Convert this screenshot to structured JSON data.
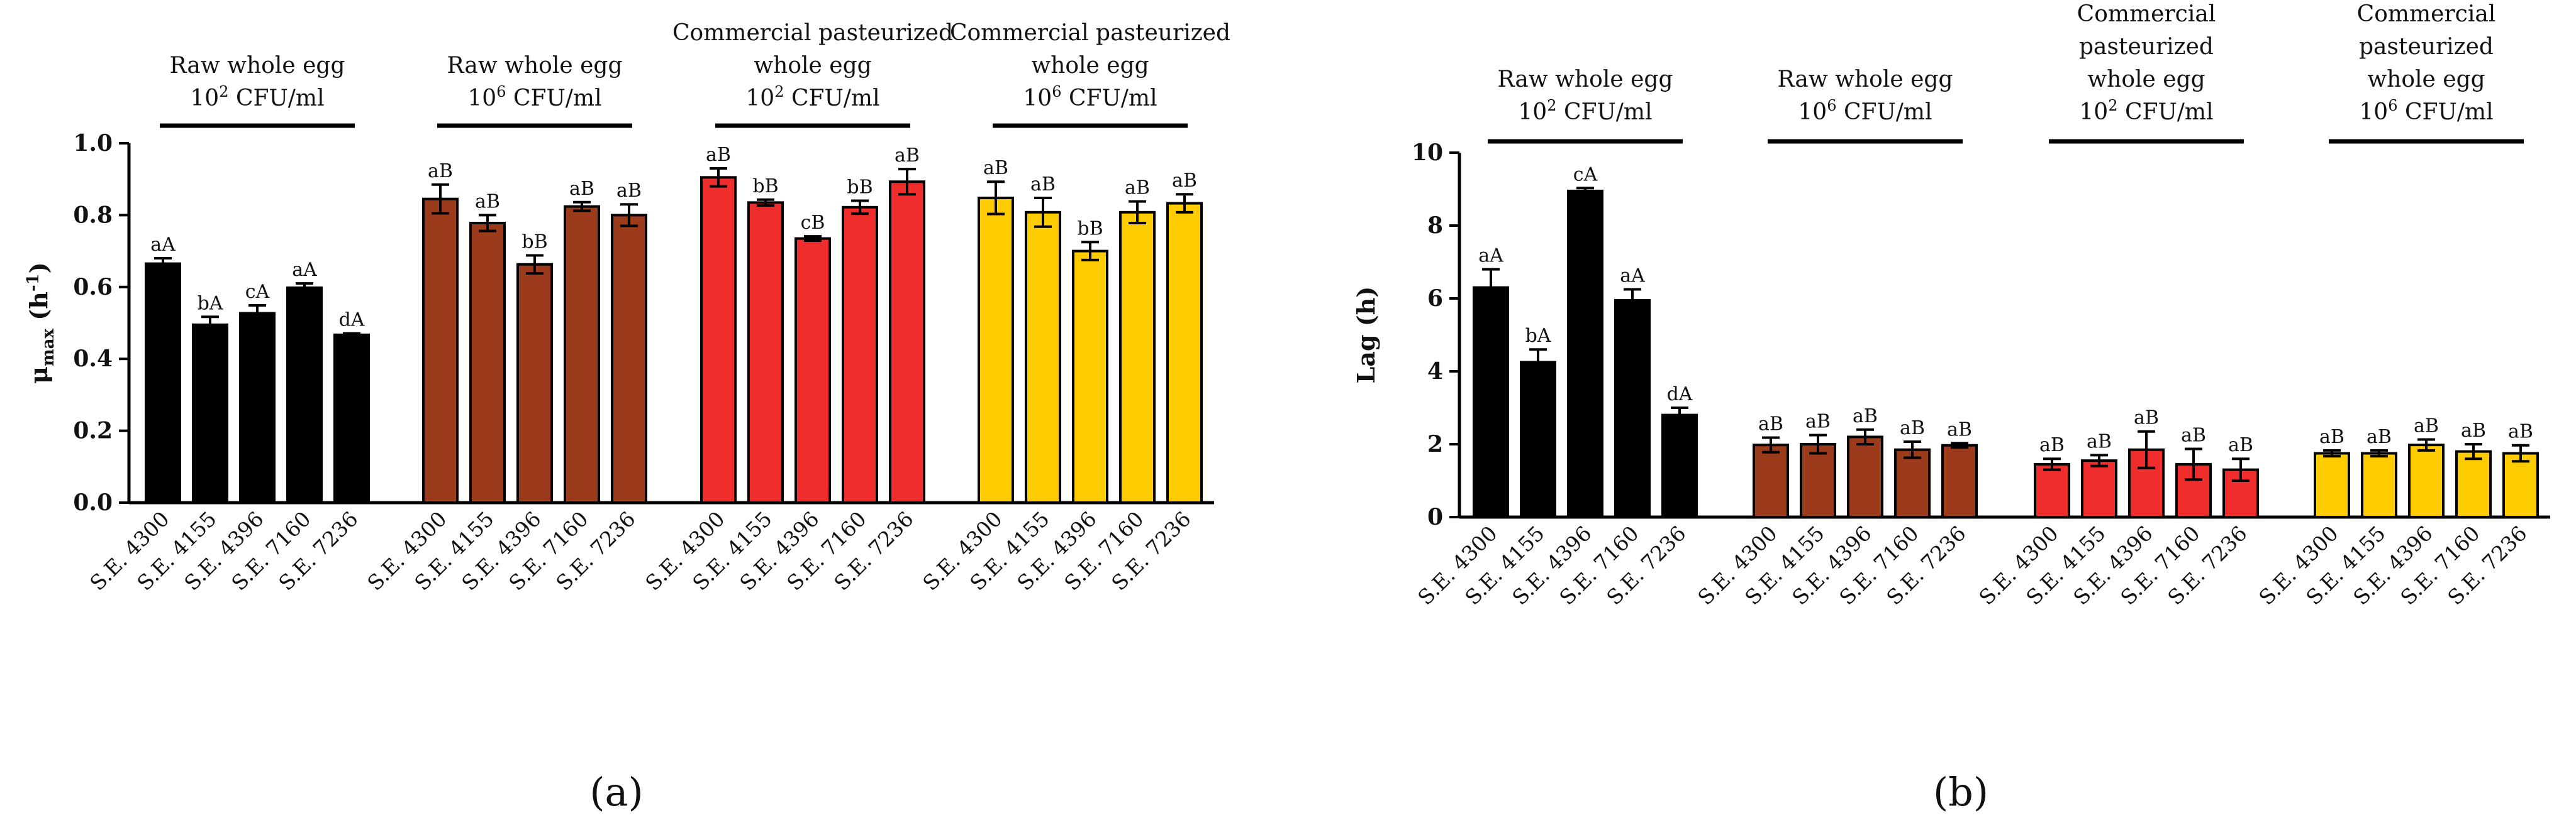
{
  "colors": {
    "Raw 10^2": "#000000",
    "Raw 10^6": "#9b3b1b",
    "Pasteurized 10^2": "#ef2d2d",
    "Pasteurized 10^6": "#ffcc00"
  },
  "chart_data": [
    {
      "type": "bar",
      "panel_label": "(a)",
      "ylabel": "μmax (h-1)",
      "ylabel_main": "μ",
      "ylabel_sub": "max",
      "ylabel_unit_open": " (h",
      "ylabel_unit_sup": "-1",
      "ylabel_unit_close": ")",
      "ylim": [
        0.0,
        1.0
      ],
      "yticks": [
        0.0,
        0.2,
        0.4,
        0.6,
        0.8,
        1.0
      ],
      "ytick_labels": [
        "0.0",
        "0.2",
        "0.4",
        "0.6",
        "0.8",
        "1.0"
      ],
      "categories": [
        "S.E. 4300",
        "S.E. 4155",
        "S.E. 4396",
        "S.E. 7160",
        "S.E. 7236"
      ],
      "groups": [
        {
          "title_lines": [
            "Raw whole egg"
          ],
          "conc_base": "10",
          "conc_exp": "2",
          "conc_unit": " CFU/ml",
          "color_key": "Raw 10^2",
          "values": [
            0.665,
            0.495,
            0.527,
            0.598,
            0.467
          ],
          "errors": [
            0.015,
            0.022,
            0.022,
            0.012,
            0.004
          ],
          "letters": [
            "aA",
            "bA",
            "cA",
            "aA",
            "dA"
          ]
        },
        {
          "title_lines": [
            "Raw whole egg"
          ],
          "conc_base": "10",
          "conc_exp": "6",
          "conc_unit": " CFU/ml",
          "color_key": "Raw 10^6",
          "values": [
            0.845,
            0.778,
            0.663,
            0.824,
            0.8
          ],
          "errors": [
            0.04,
            0.022,
            0.025,
            0.012,
            0.03
          ],
          "letters": [
            "aB",
            "aB",
            "bB",
            "aB",
            "aB"
          ]
        },
        {
          "title_lines": [
            "Commercial pasteurized",
            "whole egg"
          ],
          "conc_base": "10",
          "conc_exp": "2",
          "conc_unit": " CFU/ml",
          "color_key": "Pasteurized 10^2",
          "values": [
            0.905,
            0.835,
            0.735,
            0.822,
            0.893
          ],
          "errors": [
            0.025,
            0.008,
            0.006,
            0.018,
            0.035
          ],
          "letters": [
            "aB",
            "bB",
            "cB",
            "bB",
            "aB"
          ]
        },
        {
          "title_lines": [
            "Commercial pasteurized",
            "whole egg"
          ],
          "conc_base": "10",
          "conc_exp": "6",
          "conc_unit": " CFU/ml",
          "color_key": "Pasteurized 10^6",
          "values": [
            0.848,
            0.808,
            0.7,
            0.808,
            0.833
          ],
          "errors": [
            0.045,
            0.04,
            0.025,
            0.03,
            0.025
          ],
          "letters": [
            "aB",
            "aB",
            "bB",
            "aB",
            "aB"
          ]
        }
      ]
    },
    {
      "type": "bar",
      "panel_label": "(b)",
      "ylabel": "Lag (h)",
      "ylim": [
        0,
        10
      ],
      "yticks": [
        0,
        2,
        4,
        6,
        8,
        10
      ],
      "ytick_labels": [
        "0",
        "2",
        "4",
        "6",
        "8",
        "10"
      ],
      "categories": [
        "S.E. 4300",
        "S.E. 4155",
        "S.E. 4396",
        "S.E. 7160",
        "S.E. 7236"
      ],
      "groups": [
        {
          "title_lines": [
            "Raw whole egg"
          ],
          "conc_base": "10",
          "conc_exp": "2",
          "conc_unit": " CFU/ml",
          "color_key": "Raw 10^2",
          "values": [
            6.3,
            4.25,
            8.95,
            5.95,
            2.8
          ],
          "errors": [
            0.5,
            0.35,
            0.08,
            0.3,
            0.2
          ],
          "letters": [
            "aA",
            "bA",
            "cA",
            "aA",
            "dA"
          ]
        },
        {
          "title_lines": [
            "Raw whole egg"
          ],
          "conc_base": "10",
          "conc_exp": "6",
          "conc_unit": " CFU/ml",
          "color_key": "Raw 10^6",
          "values": [
            1.98,
            2.0,
            2.2,
            1.85,
            1.97
          ],
          "errors": [
            0.2,
            0.25,
            0.2,
            0.22,
            0.06
          ],
          "letters": [
            "aB",
            "aB",
            "aB",
            "aB",
            "aB"
          ]
        },
        {
          "title_lines": [
            "Commercial",
            "pasteurized",
            "whole egg"
          ],
          "conc_base": "10",
          "conc_exp": "2",
          "conc_unit": " CFU/ml",
          "color_key": "Pasteurized 10^2",
          "values": [
            1.45,
            1.55,
            1.85,
            1.45,
            1.3
          ],
          "errors": [
            0.15,
            0.15,
            0.5,
            0.42,
            0.3
          ],
          "letters": [
            "aB",
            "aB",
            "aB",
            "aB",
            "aB"
          ]
        },
        {
          "title_lines": [
            "Commercial",
            "pasteurized",
            "whole egg"
          ],
          "conc_base": "10",
          "conc_exp": "6",
          "conc_unit": " CFU/ml",
          "color_key": "Pasteurized 10^6",
          "values": [
            1.75,
            1.75,
            1.98,
            1.8,
            1.75
          ],
          "errors": [
            0.08,
            0.08,
            0.15,
            0.2,
            0.22
          ],
          "letters": [
            "aB",
            "aB",
            "aB",
            "aB",
            "aB"
          ]
        }
      ]
    }
  ]
}
